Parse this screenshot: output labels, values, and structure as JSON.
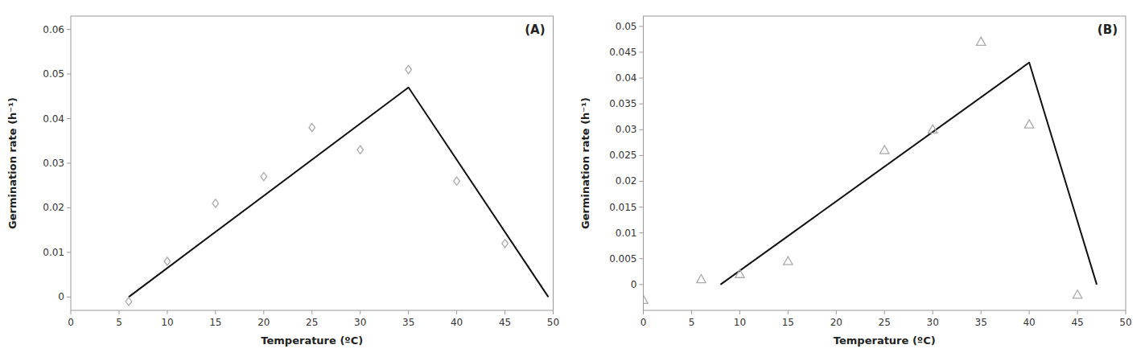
{
  "chart_data": [
    {
      "type": "scatter",
      "annotation": "(A)",
      "x_label": "Temperature (ºC)",
      "y_label": "Germination rate (h⁻¹)",
      "grid": false,
      "series": [
        {
          "type": "line",
          "color": "#111111",
          "x": [
            6,
            35,
            49.5
          ],
          "values": [
            0.0,
            0.047,
            0.0
          ]
        },
        {
          "type": "scatter",
          "marker": "diamond",
          "color": "#aaaaaa",
          "x": [
            6,
            10,
            15,
            20,
            25,
            30,
            35,
            40,
            45
          ],
          "values": [
            -0.001,
            0.008,
            0.021,
            0.027,
            0.038,
            0.033,
            0.051,
            0.026,
            0.012
          ]
        }
      ],
      "xlim": [
        0,
        50
      ],
      "ylim": [
        -0.003,
        0.063
      ],
      "xticks": [
        0,
        5,
        10,
        15,
        20,
        25,
        30,
        35,
        40,
        45,
        50
      ],
      "yticks": [
        0,
        0.01,
        0.02,
        0.03,
        0.04,
        0.05,
        0.06
      ]
    },
    {
      "type": "scatter",
      "annotation": "(B)",
      "x_label": "Temperature (ºC)",
      "y_label": "Germination rate (h⁻¹)",
      "grid": false,
      "series": [
        {
          "type": "line",
          "color": "#111111",
          "x": [
            8,
            40,
            47
          ],
          "values": [
            0.0,
            0.043,
            0.0
          ]
        },
        {
          "type": "scatter",
          "marker": "triangle",
          "color": "#aaaaaa",
          "x": [
            0,
            6,
            10,
            15,
            25,
            30,
            35,
            40,
            45
          ],
          "values": [
            -0.003,
            0.001,
            0.002,
            0.0045,
            0.026,
            0.03,
            0.047,
            0.031,
            -0.002
          ]
        }
      ],
      "xlim": [
        0,
        50
      ],
      "ylim": [
        -0.005,
        0.052
      ],
      "xticks": [
        0,
        5,
        10,
        15,
        20,
        25,
        30,
        35,
        40,
        45,
        50
      ],
      "yticks": [
        0,
        0.005,
        0.01,
        0.015,
        0.02,
        0.025,
        0.03,
        0.035,
        0.04,
        0.045,
        0.05
      ]
    }
  ]
}
